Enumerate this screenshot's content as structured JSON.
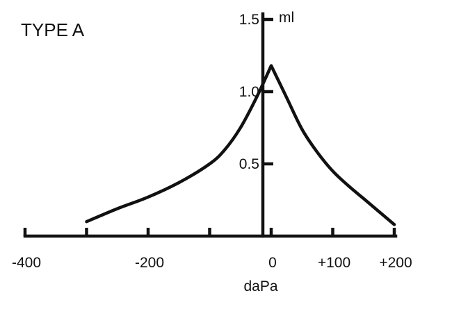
{
  "chart_data": {
    "type": "line",
    "title": "TYPE A",
    "xlabel": "daPa",
    "ylabel": "",
    "y_unit_label": "ml",
    "xlim": [
      -400,
      200
    ],
    "ylim": [
      0,
      1.5
    ],
    "grid": false,
    "legend": "none",
    "x_ticks": [
      {
        "value": -400,
        "label": "-400"
      },
      {
        "value": -300,
        "label": ""
      },
      {
        "value": -200,
        "label": "-200"
      },
      {
        "value": -100,
        "label": ""
      },
      {
        "value": 0,
        "label": "0"
      },
      {
        "value": 100,
        "label": "+100"
      },
      {
        "value": 200,
        "label": "+200"
      }
    ],
    "y_ticks": [
      {
        "value": 0.5,
        "label": "0.5"
      },
      {
        "value": 1.0,
        "label": "1.0"
      },
      {
        "value": 1.5,
        "label": "1.5"
      }
    ],
    "series": [
      {
        "color": "#111111",
        "x": [
          -300,
          -250,
          -200,
          -150,
          -100,
          -75,
          -50,
          -25,
          0,
          25,
          50,
          75,
          100,
          125,
          150,
          200
        ],
        "y": [
          0.1,
          0.19,
          0.27,
          0.37,
          0.5,
          0.6,
          0.75,
          0.95,
          1.18,
          0.96,
          0.74,
          0.58,
          0.45,
          0.35,
          0.26,
          0.08
        ]
      }
    ]
  }
}
